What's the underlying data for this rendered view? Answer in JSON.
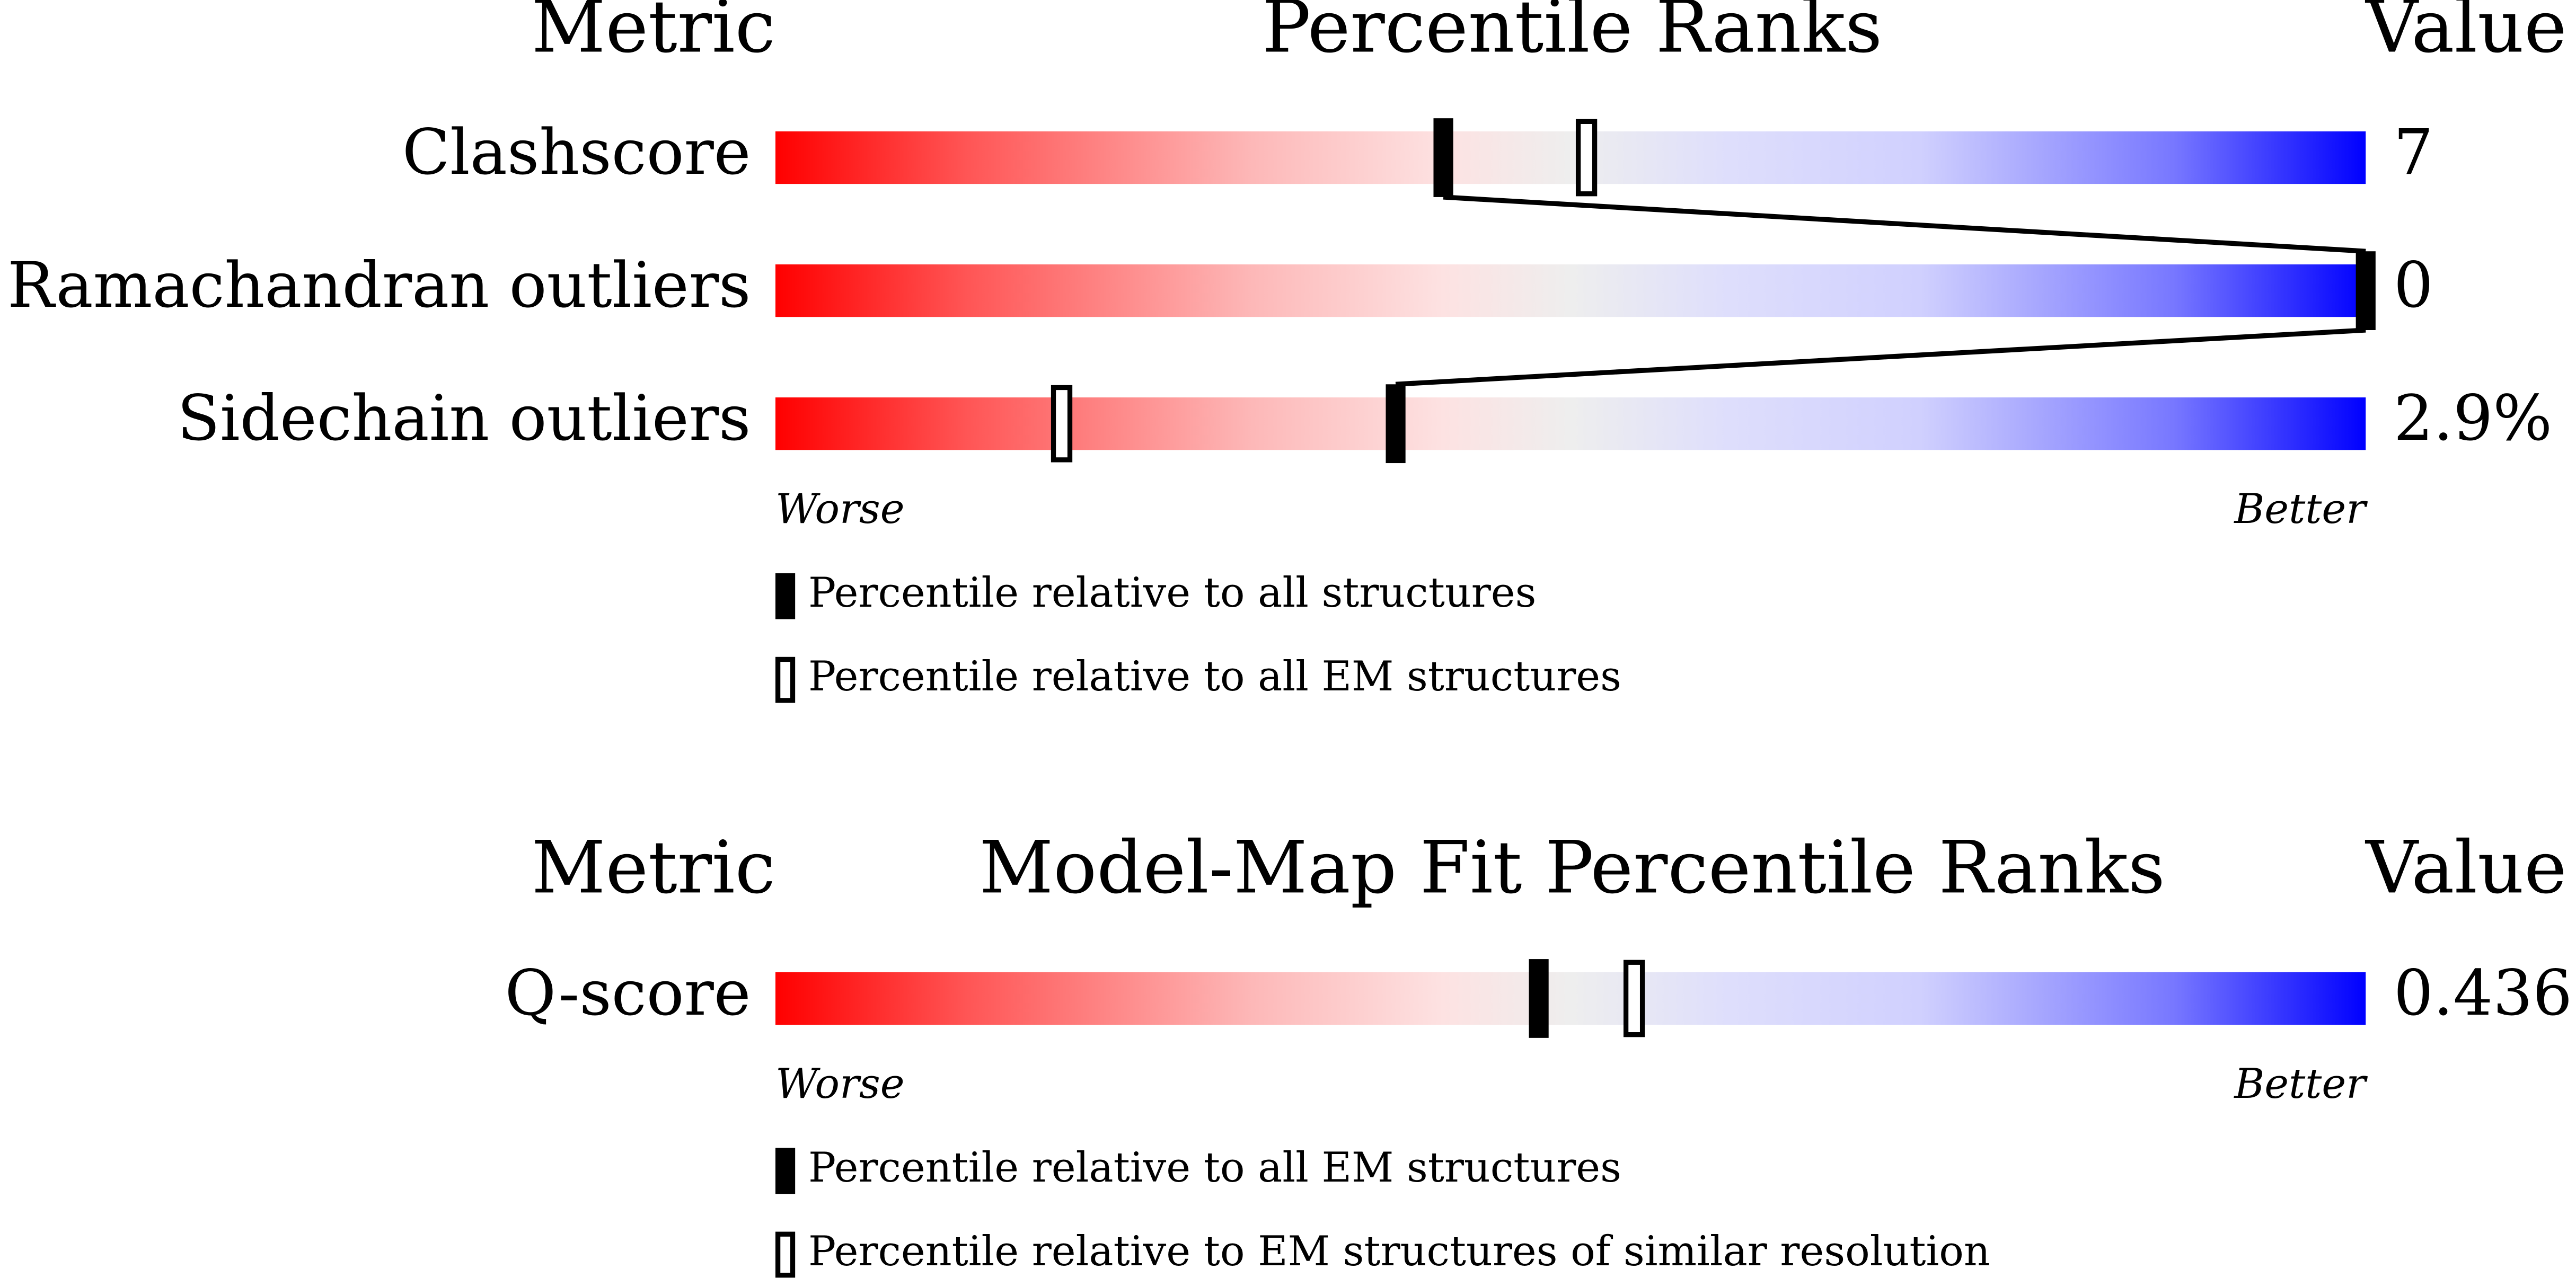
{
  "chart_data": {
    "type": "percentile",
    "xlim": [
      0,
      100
    ],
    "panels": [
      {
        "metric_header": "Metric",
        "title": "Percentile Ranks",
        "value_header": "Value",
        "worse": "Worse",
        "better": "Better",
        "rows": [
          {
            "label": "Clashscore",
            "value_label": "7",
            "filled": 42,
            "open": 51
          },
          {
            "label": "Ramachandran outliers",
            "value_label": "0",
            "filled": 100,
            "open": null
          },
          {
            "label": "Sidechain outliers",
            "value_label": "2.9%",
            "filled": 39,
            "open": 18
          }
        ],
        "legend": {
          "filled": "Percentile relative to all structures",
          "open": "Percentile relative to all EM structures"
        }
      },
      {
        "metric_header": "Metric",
        "title": "Model-Map Fit Percentile Ranks",
        "value_header": "Value",
        "worse": "Worse",
        "better": "Better",
        "rows": [
          {
            "label": "Q-score",
            "value_label": "0.436",
            "filled": 48,
            "open": 54
          }
        ],
        "legend": {
          "filled": "Percentile relative to all EM structures",
          "open": "Percentile relative to EM structures of similar resolution"
        }
      }
    ]
  }
}
